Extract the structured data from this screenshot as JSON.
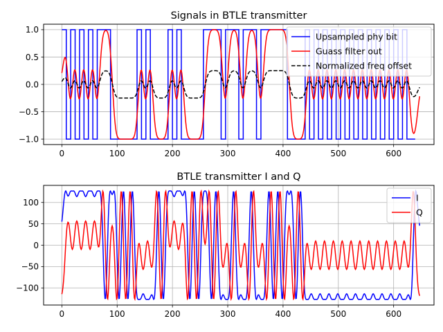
{
  "chart_data": [
    {
      "type": "line",
      "title": "Signals in BTLE transmitter",
      "xlabel": "",
      "ylabel": "",
      "xlim": [
        -33,
        673
      ],
      "ylim": [
        -1.1,
        1.1
      ],
      "xticks": [
        0,
        100,
        200,
        300,
        400,
        500,
        600
      ],
      "yticks": [
        -1.0,
        -0.5,
        0.0,
        0.5,
        1.0
      ],
      "ytick_labels": [
        "−1.0",
        "−0.5",
        "0.0",
        "0.5",
        "1.0"
      ],
      "grid": true,
      "legend_position": "top-right",
      "samples_per_bit": 8,
      "bits": [
        1,
        0,
        1,
        0,
        1,
        0,
        1,
        0,
        1,
        1,
        1,
        0,
        0,
        0,
        0,
        0,
        0,
        1,
        0,
        1,
        0,
        0,
        0,
        0,
        1,
        0,
        1,
        0,
        0,
        0,
        0,
        0,
        1,
        1,
        1,
        1,
        0,
        1,
        1,
        1,
        0,
        1,
        1,
        1,
        0,
        1,
        1,
        1,
        1,
        1,
        1,
        0,
        0,
        0,
        0,
        1,
        0,
        1,
        0,
        1,
        0,
        1,
        0,
        1,
        0,
        1,
        0,
        1,
        0,
        1,
        0,
        1,
        0,
        1,
        0,
        1,
        0,
        1,
        0,
        0
      ],
      "series": [
        {
          "name": "Upsampled phy bit",
          "color": "#0000ff",
          "dash": "solid",
          "kind": "step",
          "range": [
            0,
            640
          ]
        },
        {
          "name": "Guass filter out",
          "color": "#ff0000",
          "dash": "solid",
          "kind": "filtered",
          "range": [
            0,
            648
          ],
          "sigma": 4.5
        },
        {
          "name": "Normalized freq offset",
          "color": "#000000",
          "dash": "dashed",
          "kind": "freq",
          "range": [
            0,
            648
          ],
          "scale": 0.25
        }
      ]
    },
    {
      "type": "line",
      "title": "BTLE transmitter I and Q",
      "xlabel": "",
      "ylabel": "",
      "xlim": [
        -33,
        673
      ],
      "ylim": [
        -140,
        140
      ],
      "xticks": [
        0,
        100,
        200,
        300,
        400,
        500,
        600
      ],
      "yticks": [
        -100,
        -50,
        0,
        50,
        100
      ],
      "ytick_labels": [
        "−100",
        "−50",
        "0",
        "50",
        "100"
      ],
      "grid": true,
      "legend_position": "top-right",
      "amplitude": 127,
      "start_phase_deg": -69,
      "series": [
        {
          "name": "I",
          "color": "#0000ff",
          "dash": "solid"
        },
        {
          "name": "Q",
          "color": "#ff0000",
          "dash": "solid"
        }
      ]
    }
  ]
}
